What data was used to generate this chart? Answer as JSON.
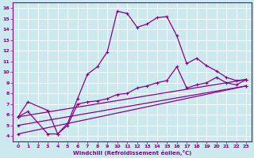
{
  "xlabel": "Windchill (Refroidissement éolien,°C)",
  "background_color": "#cce9f0",
  "line_color": "#880088",
  "xlim": [
    -0.5,
    23.5
  ],
  "ylim": [
    3.5,
    16.5
  ],
  "xticks": [
    0,
    1,
    2,
    3,
    4,
    5,
    6,
    7,
    8,
    9,
    10,
    11,
    12,
    13,
    14,
    15,
    16,
    17,
    18,
    19,
    20,
    21,
    22,
    23
  ],
  "yticks": [
    4,
    5,
    6,
    7,
    8,
    9,
    10,
    11,
    12,
    13,
    14,
    15,
    16
  ],
  "grid_color": "#ffffff",
  "series1_x": [
    0,
    1,
    3,
    4,
    5,
    6,
    7,
    8,
    9,
    10,
    11,
    12,
    13,
    14,
    15,
    16,
    17,
    18,
    19,
    20,
    21,
    22,
    23
  ],
  "series1_y": [
    5.8,
    7.2,
    6.4,
    4.2,
    5.2,
    7.5,
    9.8,
    10.5,
    11.9,
    15.7,
    15.5,
    14.2,
    14.5,
    15.1,
    15.2,
    13.4,
    10.8,
    11.3,
    10.6,
    10.1,
    9.5,
    9.2,
    9.3
  ],
  "series2_x": [
    0,
    1,
    3,
    4,
    5,
    6,
    7,
    8,
    9,
    10,
    11,
    12,
    13,
    14,
    15,
    16,
    17,
    18,
    19,
    20,
    21,
    22,
    23
  ],
  "series2_y": [
    5.8,
    6.3,
    4.2,
    4.2,
    5.0,
    7.0,
    7.2,
    7.3,
    7.5,
    7.9,
    8.0,
    8.5,
    8.7,
    9.0,
    9.2,
    10.5,
    8.5,
    8.8,
    9.0,
    9.5,
    9.0,
    8.8,
    9.3
  ],
  "series3_x": [
    0,
    23
  ],
  "series3_y": [
    5.8,
    9.3
  ],
  "series4_x": [
    0,
    23
  ],
  "series4_y": [
    5.0,
    8.7
  ],
  "series5_x": [
    0,
    23
  ],
  "series5_y": [
    4.2,
    8.7
  ]
}
